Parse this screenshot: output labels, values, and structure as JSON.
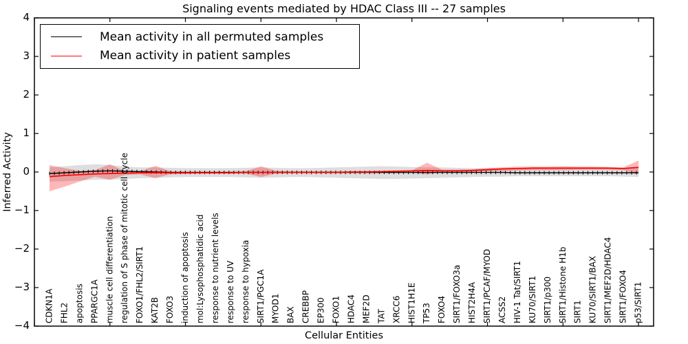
{
  "figure": {
    "title": "Signaling events mediated by HDAC Class III -- 27 samples",
    "xlabel": "Cellular Entities",
    "ylabel": "Inferred Activity"
  },
  "legend": {
    "entries": [
      {
        "label": "Mean activity in all permuted samples",
        "color": "#000000"
      },
      {
        "label": "Mean activity in patient samples",
        "color": "#ff0000"
      }
    ]
  },
  "colors": {
    "permuted_line": "#000000",
    "patient_line": "#ff0000",
    "permuted_band": "rgba(0,0,0,0.13)",
    "patient_band": "rgba(255,0,0,0.28)",
    "axis": "#000000"
  },
  "yaxis": {
    "ticks": [
      {
        "label": "4",
        "value": 4
      },
      {
        "label": "3",
        "value": 3
      },
      {
        "label": "2",
        "value": 2
      },
      {
        "label": "1",
        "value": 1
      },
      {
        "label": "0",
        "value": 0
      },
      {
        "label": "−1",
        "value": -1
      },
      {
        "label": "−2",
        "value": -2
      },
      {
        "label": "−3",
        "value": -3
      },
      {
        "label": "−4",
        "value": -4
      }
    ]
  },
  "chart_data": {
    "type": "line",
    "title": "Signaling events mediated by HDAC Class III -- 27 samples",
    "xlabel": "Cellular Entities",
    "ylabel": "Inferred Activity",
    "ylim": [
      -4,
      4
    ],
    "grid": false,
    "legend_position": "upper left",
    "categories": [
      "CDKN1A",
      "FHL2",
      "apoptosis",
      "PPARGC1A",
      "muscle cell differentiation",
      "regulation of S phase of mitotic cell cycle",
      "FOXO1/FHL2/SIRT1",
      "KAT2B",
      "FOXO3",
      "induction of apoptosis",
      "mol:Lysophosphatidic acid",
      "response to nutrient levels",
      "response to UV",
      "response to hypoxia",
      "SIRT1/PGC1A",
      "MYOD1",
      "BAX",
      "CREBBP",
      "EP300",
      "FOXO1",
      "HDAC4",
      "MEF2D",
      "TAT",
      "XRCC6",
      "HIST1H1E",
      "TP53",
      "FOXO4",
      "SIRT1/FOXO3a",
      "HIST2H4A",
      "SIRT1/PCAF/MYOD",
      "ACSS2",
      "HIV-1 Tat/SIRT1",
      "KU70/SIRT1",
      "SIRT1/p300",
      "SIRT1/Histone H1b",
      "SIRT1",
      "KU70/SIRT1/BAX",
      "SIRT1/MEF2D/HDAC4",
      "SIRT1/FOXO4",
      "p53/SIRT1"
    ],
    "series": [
      {
        "name": "Mean activity in all permuted samples",
        "color": "#000000",
        "values": [
          -0.04,
          -0.02,
          0.0,
          0.02,
          0.03,
          0.02,
          0.01,
          0.0,
          -0.01,
          -0.01,
          -0.01,
          -0.01,
          -0.01,
          -0.01,
          -0.01,
          -0.01,
          -0.01,
          -0.01,
          -0.01,
          -0.01,
          -0.01,
          -0.01,
          -0.01,
          -0.01,
          -0.01,
          -0.01,
          -0.01,
          -0.01,
          -0.01,
          -0.01,
          -0.01,
          -0.02,
          -0.02,
          -0.02,
          -0.02,
          -0.02,
          -0.02,
          -0.02,
          -0.02,
          -0.02
        ],
        "band_upper": [
          0.12,
          0.15,
          0.18,
          0.2,
          0.18,
          0.14,
          0.12,
          0.12,
          0.11,
          0.1,
          0.1,
          0.1,
          0.1,
          0.11,
          0.12,
          0.11,
          0.1,
          0.1,
          0.11,
          0.12,
          0.13,
          0.14,
          0.15,
          0.14,
          0.13,
          0.12,
          0.12,
          0.11,
          0.1,
          0.1,
          0.09,
          0.09,
          0.08,
          0.08,
          0.08,
          0.08,
          0.08,
          0.08,
          0.09,
          0.1
        ],
        "band_lower": [
          -0.25,
          -0.24,
          -0.22,
          -0.2,
          -0.2,
          -0.18,
          -0.16,
          -0.15,
          -0.14,
          -0.13,
          -0.13,
          -0.13,
          -0.13,
          -0.14,
          -0.15,
          -0.14,
          -0.13,
          -0.13,
          -0.14,
          -0.15,
          -0.16,
          -0.17,
          -0.18,
          -0.18,
          -0.17,
          -0.16,
          -0.15,
          -0.14,
          -0.13,
          -0.12,
          -0.12,
          -0.11,
          -0.11,
          -0.11,
          -0.11,
          -0.11,
          -0.11,
          -0.11,
          -0.12,
          -0.13
        ]
      },
      {
        "name": "Mean activity in patient samples",
        "color": "#ff0000",
        "values": [
          -0.12,
          -0.09,
          -0.07,
          -0.05,
          -0.04,
          -0.03,
          -0.02,
          -0.02,
          -0.02,
          -0.02,
          -0.02,
          -0.02,
          -0.02,
          -0.01,
          -0.01,
          -0.01,
          -0.01,
          -0.01,
          -0.01,
          -0.01,
          0.0,
          0.0,
          0.01,
          0.02,
          0.03,
          0.04,
          0.03,
          0.03,
          0.04,
          0.06,
          0.08,
          0.09,
          0.1,
          0.1,
          0.1,
          0.1,
          0.1,
          0.1,
          0.09,
          0.12
        ],
        "band_upper": [
          0.18,
          0.1,
          0.03,
          0.05,
          0.2,
          0.02,
          0.02,
          0.16,
          0.02,
          0.01,
          0.01,
          0.01,
          0.01,
          0.02,
          0.15,
          0.03,
          0.02,
          0.02,
          0.02,
          0.02,
          0.02,
          0.03,
          0.03,
          0.03,
          0.04,
          0.24,
          0.06,
          0.06,
          0.07,
          0.1,
          0.12,
          0.14,
          0.14,
          0.14,
          0.15,
          0.14,
          0.14,
          0.13,
          0.12,
          0.3
        ],
        "band_lower": [
          -0.5,
          -0.38,
          -0.25,
          -0.12,
          -0.2,
          -0.08,
          -0.06,
          -0.16,
          -0.06,
          -0.05,
          -0.04,
          -0.04,
          -0.04,
          -0.04,
          -0.13,
          -0.04,
          -0.03,
          -0.03,
          -0.03,
          -0.03,
          -0.03,
          -0.03,
          -0.03,
          -0.03,
          -0.02,
          -0.06,
          -0.01,
          0.0,
          0.0,
          0.02,
          0.03,
          0.04,
          0.05,
          0.05,
          0.05,
          0.06,
          0.06,
          0.06,
          0.05,
          -0.05
        ]
      }
    ]
  }
}
